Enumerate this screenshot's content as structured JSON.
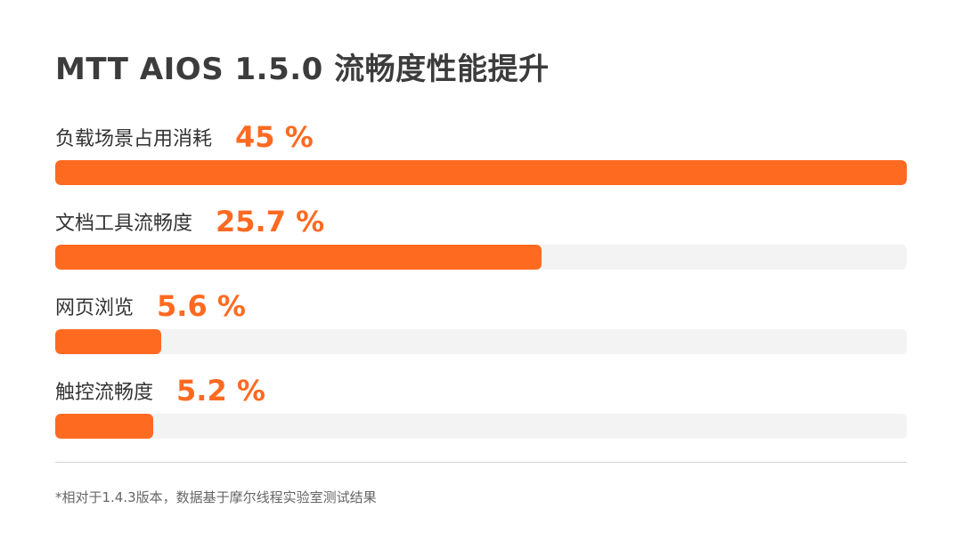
{
  "title": "MTT AIOS 1.5.0 流畅度性能提升",
  "footnote": "*相对于1.4.3版本，数据基于摩尔线程实验室测试结果",
  "colors": {
    "accent": "#ff6a21",
    "track": "#f3f3f3",
    "text": "#333333"
  },
  "chart_data": {
    "type": "bar",
    "orientation": "horizontal",
    "title": "MTT AIOS 1.5.0 流畅度性能提升",
    "unit": "%",
    "categories": [
      "负载场景占用消耗",
      "文档工具流畅度",
      "网页浏览",
      "触控流畅度"
    ],
    "values": [
      45,
      25.7,
      5.6,
      5.2
    ],
    "value_labels": [
      "45 %",
      "25.7 %",
      "5.6 %",
      "5.2 %"
    ],
    "xlim": [
      0,
      45
    ],
    "grid": false
  }
}
